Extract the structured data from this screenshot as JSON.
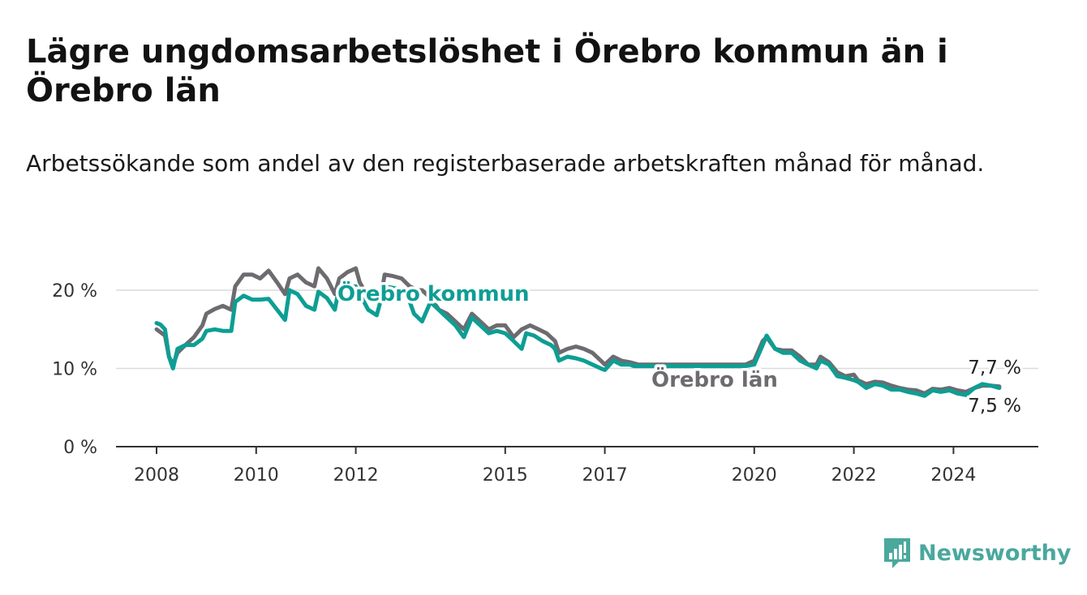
{
  "title": "Lägre ungdomsarbetslöshet i Örebro kommun än i Örebro län",
  "subtitle": "Arbetssökande som andel av den registerbaserade arbetskraften månad för månad.",
  "brand": "Newsworthy",
  "colors": {
    "kommun": "#0d9e94",
    "lan": "#6e6b70",
    "grid": "#dcdcdc",
    "axis": "#333333"
  },
  "chart_data": {
    "type": "line",
    "title": "Lägre ungdomsarbetslöshet i Örebro kommun än i Örebro län",
    "subtitle": "Arbetssökande som andel av den registerbaserade arbetskraften månad för månad.",
    "xlabel": "",
    "ylabel": "",
    "ylim": [
      0,
      20
    ],
    "yticks": [
      "0 %",
      "10 %",
      "20 %"
    ],
    "ytick_values": [
      0,
      10,
      20
    ],
    "xticks": [
      "2008",
      "2010",
      "2012",
      "2015",
      "2017",
      "2020",
      "2022",
      "2024"
    ],
    "xtick_values": [
      2008,
      2010,
      2012,
      2015,
      2017,
      2020,
      2022,
      2024
    ],
    "grid": true,
    "series": [
      {
        "name": "Örebro län",
        "label": "Örebro län",
        "end_label": "7,7 %",
        "points": [
          [
            2008.0,
            15.0
          ],
          [
            2008.17,
            14.2
          ],
          [
            2008.25,
            11.5
          ],
          [
            2008.33,
            10.5
          ],
          [
            2008.42,
            12.0
          ],
          [
            2008.58,
            13.0
          ],
          [
            2008.75,
            14.0
          ],
          [
            2008.92,
            15.5
          ],
          [
            2009.0,
            17.0
          ],
          [
            2009.17,
            17.6
          ],
          [
            2009.33,
            18.0
          ],
          [
            2009.5,
            17.5
          ],
          [
            2009.58,
            20.5
          ],
          [
            2009.75,
            22.0
          ],
          [
            2009.92,
            22.0
          ],
          [
            2010.08,
            21.5
          ],
          [
            2010.25,
            22.5
          ],
          [
            2010.42,
            21.0
          ],
          [
            2010.58,
            19.5
          ],
          [
            2010.67,
            21.5
          ],
          [
            2010.83,
            22.0
          ],
          [
            2011.0,
            21.0
          ],
          [
            2011.17,
            20.5
          ],
          [
            2011.25,
            22.8
          ],
          [
            2011.42,
            21.5
          ],
          [
            2011.58,
            19.5
          ],
          [
            2011.67,
            21.5
          ],
          [
            2011.83,
            22.3
          ],
          [
            2012.0,
            22.8
          ],
          [
            2012.08,
            21.0
          ],
          [
            2012.17,
            20.0
          ],
          [
            2012.33,
            19.5
          ],
          [
            2012.5,
            19.0
          ],
          [
            2012.58,
            22.0
          ],
          [
            2012.75,
            21.8
          ],
          [
            2012.92,
            21.5
          ],
          [
            2013.08,
            20.5
          ],
          [
            2013.25,
            20.0
          ],
          [
            2013.33,
            20.0
          ],
          [
            2013.5,
            19.0
          ],
          [
            2013.67,
            17.5
          ],
          [
            2013.83,
            17.0
          ],
          [
            2014.0,
            16.0
          ],
          [
            2014.17,
            15.0
          ],
          [
            2014.33,
            17.0
          ],
          [
            2014.5,
            16.0
          ],
          [
            2014.67,
            15.0
          ],
          [
            2014.83,
            15.5
          ],
          [
            2015.0,
            15.5
          ],
          [
            2015.17,
            14.0
          ],
          [
            2015.33,
            15.0
          ],
          [
            2015.5,
            15.5
          ],
          [
            2015.67,
            15.0
          ],
          [
            2015.83,
            14.5
          ],
          [
            2016.0,
            13.5
          ],
          [
            2016.08,
            12.0
          ],
          [
            2016.25,
            12.5
          ],
          [
            2016.42,
            12.8
          ],
          [
            2016.58,
            12.5
          ],
          [
            2016.75,
            12.0
          ],
          [
            2016.92,
            11.0
          ],
          [
            2017.0,
            10.5
          ],
          [
            2017.17,
            11.5
          ],
          [
            2017.33,
            11.0
          ],
          [
            2017.5,
            10.8
          ],
          [
            2017.67,
            10.5
          ],
          [
            2019.83,
            10.5
          ],
          [
            2020.0,
            11.0
          ],
          [
            2020.17,
            13.5
          ],
          [
            2020.25,
            14.0
          ],
          [
            2020.42,
            12.5
          ],
          [
            2020.58,
            12.3
          ],
          [
            2020.75,
            12.3
          ],
          [
            2020.92,
            11.5
          ],
          [
            2021.08,
            10.5
          ],
          [
            2021.25,
            10.5
          ],
          [
            2021.33,
            11.5
          ],
          [
            2021.5,
            10.8
          ],
          [
            2021.67,
            9.5
          ],
          [
            2021.83,
            9.0
          ],
          [
            2022.0,
            9.2
          ],
          [
            2022.08,
            8.5
          ],
          [
            2022.25,
            8.0
          ],
          [
            2022.42,
            8.3
          ],
          [
            2022.58,
            8.2
          ],
          [
            2022.75,
            7.8
          ],
          [
            2022.92,
            7.5
          ],
          [
            2023.08,
            7.3
          ],
          [
            2023.25,
            7.2
          ],
          [
            2023.42,
            6.8
          ],
          [
            2023.58,
            7.4
          ],
          [
            2023.75,
            7.3
          ],
          [
            2023.92,
            7.5
          ],
          [
            2024.08,
            7.2
          ],
          [
            2024.25,
            7.0
          ],
          [
            2024.42,
            7.5
          ],
          [
            2024.58,
            7.8
          ],
          [
            2024.75,
            7.8
          ],
          [
            2024.92,
            7.7
          ]
        ]
      },
      {
        "name": "Örebro kommun",
        "label": "Örebro kommun",
        "end_label": "7,5 %",
        "points": [
          [
            2008.0,
            15.8
          ],
          [
            2008.08,
            15.6
          ],
          [
            2008.17,
            15.0
          ],
          [
            2008.25,
            11.5
          ],
          [
            2008.33,
            10.0
          ],
          [
            2008.42,
            12.5
          ],
          [
            2008.58,
            13.0
          ],
          [
            2008.75,
            13.0
          ],
          [
            2008.92,
            13.8
          ],
          [
            2009.0,
            14.8
          ],
          [
            2009.17,
            15.0
          ],
          [
            2009.33,
            14.8
          ],
          [
            2009.5,
            14.8
          ],
          [
            2009.58,
            18.5
          ],
          [
            2009.75,
            19.3
          ],
          [
            2009.92,
            18.8
          ],
          [
            2010.08,
            18.8
          ],
          [
            2010.25,
            18.9
          ],
          [
            2010.42,
            17.5
          ],
          [
            2010.58,
            16.2
          ],
          [
            2010.67,
            20.0
          ],
          [
            2010.83,
            19.5
          ],
          [
            2011.0,
            18.0
          ],
          [
            2011.17,
            17.5
          ],
          [
            2011.25,
            19.8
          ],
          [
            2011.42,
            19.0
          ],
          [
            2011.58,
            17.5
          ],
          [
            2011.67,
            20.5
          ],
          [
            2012.0,
            20.5
          ],
          [
            2012.25,
            17.5
          ],
          [
            2012.42,
            16.8
          ],
          [
            2012.58,
            20.5
          ],
          [
            2013.0,
            20.0
          ],
          [
            2013.17,
            17.0
          ],
          [
            2013.33,
            16.0
          ],
          [
            2013.5,
            18.5
          ],
          [
            2013.75,
            17.0
          ],
          [
            2014.0,
            15.5
          ],
          [
            2014.17,
            14.0
          ],
          [
            2014.33,
            16.5
          ],
          [
            2014.5,
            15.5
          ],
          [
            2014.67,
            14.5
          ],
          [
            2014.83,
            14.8
          ],
          [
            2015.0,
            14.5
          ],
          [
            2015.17,
            13.5
          ],
          [
            2015.33,
            12.5
          ],
          [
            2015.42,
            14.5
          ],
          [
            2015.58,
            14.2
          ],
          [
            2015.75,
            13.5
          ],
          [
            2015.92,
            13.0
          ],
          [
            2016.0,
            12.5
          ],
          [
            2016.08,
            11.0
          ],
          [
            2016.25,
            11.5
          ],
          [
            2016.42,
            11.3
          ],
          [
            2016.58,
            11.0
          ],
          [
            2016.75,
            10.5
          ],
          [
            2016.92,
            10.0
          ],
          [
            2017.0,
            9.8
          ],
          [
            2017.17,
            11.0
          ],
          [
            2017.33,
            10.5
          ],
          [
            2017.5,
            10.5
          ],
          [
            2017.58,
            10.3
          ],
          [
            2019.83,
            10.3
          ],
          [
            2020.0,
            10.5
          ],
          [
            2020.17,
            13.0
          ],
          [
            2020.25,
            14.2
          ],
          [
            2020.42,
            12.5
          ],
          [
            2020.58,
            12.0
          ],
          [
            2020.75,
            12.0
          ],
          [
            2020.92,
            11.0
          ],
          [
            2021.08,
            10.5
          ],
          [
            2021.25,
            10.0
          ],
          [
            2021.33,
            11.0
          ],
          [
            2021.5,
            10.5
          ],
          [
            2021.67,
            9.0
          ],
          [
            2021.83,
            8.8
          ],
          [
            2022.0,
            8.5
          ],
          [
            2022.08,
            8.3
          ],
          [
            2022.25,
            7.5
          ],
          [
            2022.42,
            8.0
          ],
          [
            2022.58,
            7.8
          ],
          [
            2022.75,
            7.3
          ],
          [
            2022.92,
            7.3
          ],
          [
            2023.08,
            7.0
          ],
          [
            2023.25,
            6.8
          ],
          [
            2023.42,
            6.5
          ],
          [
            2023.58,
            7.2
          ],
          [
            2023.75,
            7.0
          ],
          [
            2023.92,
            7.2
          ],
          [
            2024.08,
            6.8
          ],
          [
            2024.25,
            6.6
          ],
          [
            2024.42,
            7.5
          ],
          [
            2024.58,
            8.0
          ],
          [
            2024.75,
            7.8
          ],
          [
            2024.92,
            7.5
          ]
        ]
      }
    ]
  }
}
